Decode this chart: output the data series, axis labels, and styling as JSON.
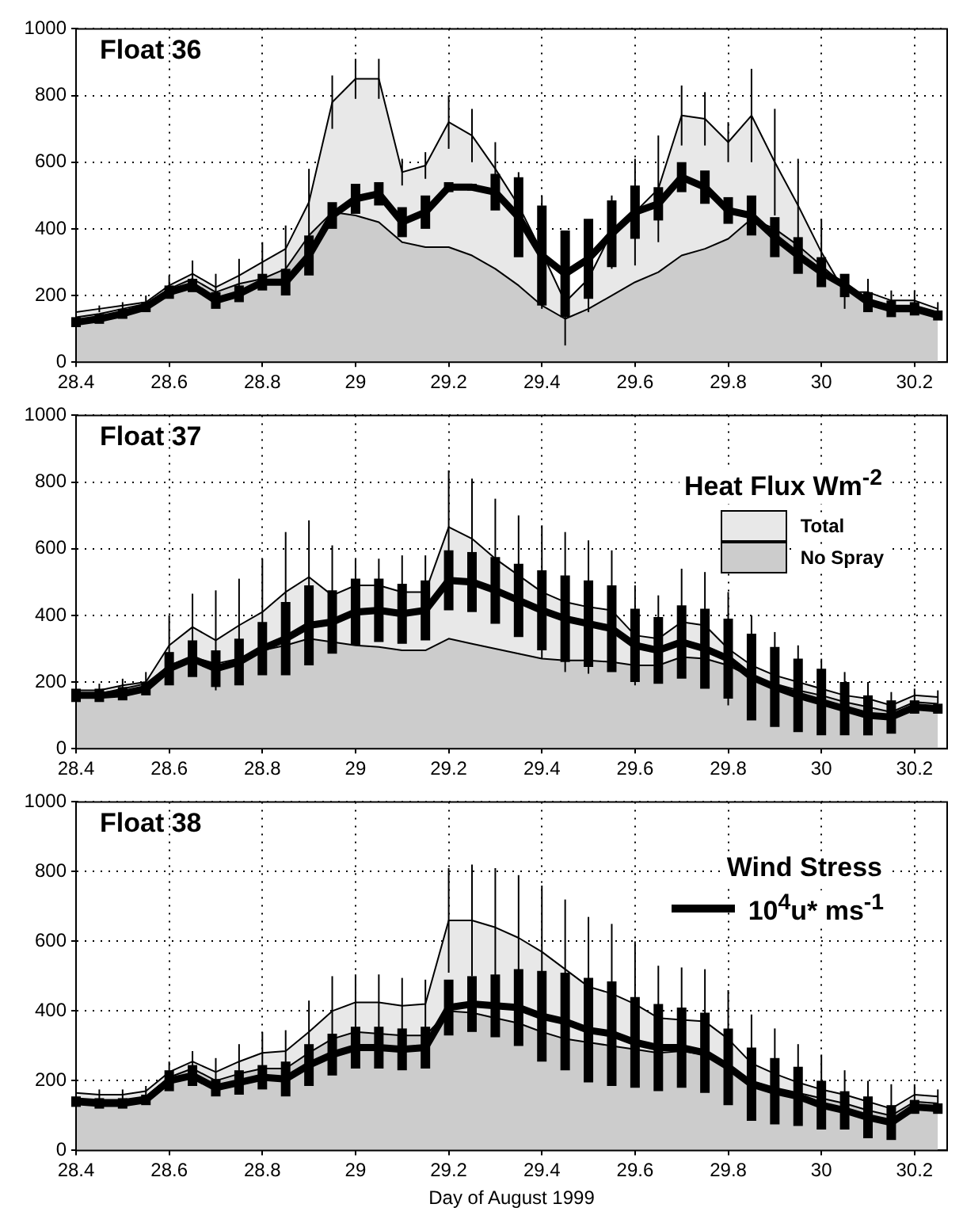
{
  "chart_data": [
    {
      "type": "area",
      "title": "Float 36",
      "x": [
        28.4,
        28.45,
        28.5,
        28.55,
        28.6,
        28.65,
        28.7,
        28.75,
        28.8,
        28.85,
        28.9,
        28.95,
        29.0,
        29.05,
        29.1,
        29.15,
        29.2,
        29.25,
        29.3,
        29.35,
        29.4,
        29.45,
        29.5,
        29.55,
        29.6,
        29.65,
        29.7,
        29.75,
        29.8,
        29.85,
        29.9,
        29.95,
        30.0,
        30.05,
        30.1,
        30.15,
        30.2,
        30.25
      ],
      "xlim": [
        28.4,
        30.27
      ],
      "xticks": [
        28.4,
        28.6,
        28.8,
        29,
        29.2,
        29.4,
        29.6,
        29.8,
        30,
        30.2
      ],
      "ylim": [
        0,
        1000
      ],
      "yticks": [
        0,
        200,
        400,
        600,
        800,
        1000
      ],
      "grid": true,
      "series": [
        {
          "type": "area",
          "color": "#e8e8e8",
          "values": [
            150,
            160,
            170,
            180,
            230,
            265,
            225,
            260,
            300,
            340,
            480,
            780,
            850,
            850,
            570,
            590,
            720,
            680,
            580,
            470,
            330,
            180,
            250,
            390,
            450,
            520,
            740,
            730,
            660,
            740,
            600,
            470,
            330,
            210,
            210,
            185,
            185,
            160
          ],
          "errors": [
            10,
            10,
            10,
            20,
            30,
            40,
            40,
            50,
            60,
            70,
            100,
            80,
            60,
            60,
            40,
            40,
            80,
            80,
            80,
            100,
            170,
            130,
            100,
            110,
            160,
            160,
            90,
            80,
            60,
            140,
            160,
            140,
            100,
            50,
            40,
            30,
            30,
            20
          ]
        },
        {
          "type": "area",
          "color": "#cccccc",
          "values": [
            135,
            145,
            160,
            175,
            220,
            250,
            210,
            235,
            250,
            280,
            380,
            450,
            440,
            420,
            360,
            345,
            345,
            320,
            280,
            230,
            170,
            130,
            160,
            200,
            240,
            270,
            320,
            340,
            370,
            430,
            400,
            350,
            290,
            230,
            190,
            170,
            170,
            150
          ]
        },
        {
          "type": "line",
          "color": "#000000",
          "values": [
            120,
            130,
            145,
            165,
            210,
            230,
            185,
            205,
            240,
            240,
            320,
            440,
            490,
            505,
            420,
            450,
            525,
            525,
            510,
            435,
            320,
            265,
            310,
            385,
            450,
            475,
            555,
            525,
            455,
            440,
            375,
            320,
            270,
            230,
            180,
            160,
            160,
            140
          ],
          "errors": [
            15,
            15,
            15,
            15,
            20,
            20,
            25,
            25,
            25,
            40,
            60,
            40,
            45,
            35,
            45,
            50,
            15,
            10,
            55,
            120,
            150,
            130,
            120,
            100,
            80,
            50,
            45,
            50,
            40,
            60,
            60,
            55,
            45,
            35,
            30,
            25,
            20,
            15
          ]
        }
      ]
    },
    {
      "type": "area",
      "title": "Float 37",
      "x": [
        28.4,
        28.45,
        28.5,
        28.55,
        28.6,
        28.65,
        28.7,
        28.75,
        28.8,
        28.85,
        28.9,
        28.95,
        29.0,
        29.05,
        29.1,
        29.15,
        29.2,
        29.25,
        29.3,
        29.35,
        29.4,
        29.45,
        29.5,
        29.55,
        29.6,
        29.65,
        29.7,
        29.75,
        29.8,
        29.85,
        29.9,
        29.95,
        30.0,
        30.05,
        30.1,
        30.15,
        30.2,
        30.25
      ],
      "xlim": [
        28.4,
        30.27
      ],
      "xticks": [
        28.4,
        28.6,
        28.8,
        29,
        29.2,
        29.4,
        29.6,
        29.8,
        30,
        30.2
      ],
      "ylim": [
        0,
        1000
      ],
      "yticks": [
        0,
        200,
        400,
        600,
        800,
        1000
      ],
      "grid": true,
      "legend": "top right",
      "legend_title": "Heat Flux Wm$^{-2}$",
      "series": [
        {
          "type": "area",
          "name": "Total",
          "color": "#e8e8e8",
          "values": [
            175,
            175,
            190,
            200,
            310,
            365,
            325,
            370,
            410,
            470,
            515,
            460,
            490,
            490,
            470,
            470,
            665,
            630,
            570,
            520,
            470,
            440,
            425,
            415,
            340,
            330,
            380,
            370,
            300,
            250,
            220,
            200,
            180,
            160,
            150,
            130,
            160,
            155
          ],
          "errors": [
            20,
            20,
            20,
            30,
            90,
            100,
            150,
            140,
            160,
            180,
            170,
            150,
            80,
            80,
            110,
            110,
            170,
            180,
            180,
            180,
            200,
            210,
            200,
            180,
            150,
            130,
            160,
            160,
            170,
            150,
            130,
            110,
            90,
            70,
            50,
            40,
            20,
            20
          ]
        },
        {
          "type": "area",
          "name": "No Spray",
          "color": "#cccccc",
          "values": [
            165,
            165,
            180,
            195,
            250,
            275,
            255,
            270,
            295,
            310,
            330,
            320,
            310,
            305,
            295,
            295,
            330,
            315,
            300,
            285,
            270,
            265,
            265,
            260,
            250,
            250,
            275,
            270,
            250,
            215,
            195,
            175,
            160,
            140,
            125,
            110,
            140,
            135
          ]
        },
        {
          "type": "line",
          "color": "#000000",
          "values": [
            160,
            160,
            165,
            180,
            240,
            270,
            240,
            260,
            300,
            330,
            370,
            380,
            410,
            415,
            405,
            415,
            505,
            500,
            475,
            445,
            415,
            390,
            375,
            360,
            310,
            295,
            320,
            300,
            270,
            215,
            185,
            160,
            140,
            120,
            100,
            95,
            125,
            120
          ],
          "errors": [
            20,
            20,
            20,
            20,
            50,
            55,
            55,
            70,
            80,
            110,
            120,
            95,
            100,
            95,
            90,
            90,
            90,
            90,
            100,
            110,
            120,
            130,
            130,
            130,
            110,
            100,
            110,
            120,
            120,
            130,
            120,
            110,
            100,
            80,
            60,
            50,
            20,
            15
          ]
        }
      ]
    },
    {
      "type": "area",
      "title": "Float 38",
      "xlabel": "Day of August 1999",
      "x": [
        28.4,
        28.45,
        28.5,
        28.55,
        28.6,
        28.65,
        28.7,
        28.75,
        28.8,
        28.85,
        28.9,
        28.95,
        29.0,
        29.05,
        29.1,
        29.15,
        29.2,
        29.25,
        29.3,
        29.35,
        29.4,
        29.45,
        29.5,
        29.55,
        29.6,
        29.65,
        29.7,
        29.75,
        29.8,
        29.85,
        29.9,
        29.95,
        30.0,
        30.05,
        30.1,
        30.15,
        30.2,
        30.25
      ],
      "xlim": [
        28.4,
        30.27
      ],
      "xticks": [
        28.4,
        28.6,
        28.8,
        29,
        29.2,
        29.4,
        29.6,
        29.8,
        30,
        30.2
      ],
      "ylim": [
        0,
        1000
      ],
      "yticks": [
        0,
        200,
        400,
        600,
        800,
        1000
      ],
      "grid": true,
      "legend": "top right",
      "legend_title": "Wind Stress",
      "series": [
        {
          "type": "area",
          "color": "#e8e8e8",
          "values": [
            165,
            160,
            160,
            170,
            225,
            255,
            225,
            255,
            280,
            285,
            340,
            400,
            425,
            425,
            415,
            420,
            660,
            660,
            640,
            610,
            570,
            520,
            470,
            450,
            420,
            380,
            375,
            370,
            320,
            250,
            220,
            195,
            175,
            160,
            140,
            120,
            160,
            155
          ],
          "errors": [
            15,
            15,
            15,
            15,
            30,
            30,
            40,
            50,
            60,
            60,
            90,
            100,
            80,
            80,
            80,
            70,
            150,
            160,
            170,
            180,
            190,
            200,
            200,
            200,
            180,
            150,
            150,
            150,
            140,
            140,
            130,
            110,
            100,
            70,
            60,
            70,
            30,
            20
          ]
        },
        {
          "type": "area",
          "color": "#cccccc",
          "values": [
            150,
            145,
            145,
            155,
            210,
            235,
            200,
            220,
            235,
            235,
            280,
            320,
            340,
            335,
            330,
            330,
            400,
            395,
            380,
            365,
            340,
            320,
            310,
            300,
            290,
            280,
            285,
            275,
            240,
            200,
            180,
            165,
            150,
            135,
            115,
            100,
            140,
            135
          ]
        },
        {
          "type": "line",
          "name": "10$^{4}$u* ms$^{-1}$",
          "color": "#000000",
          "values": [
            140,
            135,
            135,
            145,
            200,
            215,
            180,
            195,
            210,
            205,
            245,
            275,
            295,
            295,
            290,
            295,
            410,
            420,
            415,
            410,
            385,
            370,
            345,
            335,
            310,
            295,
            295,
            280,
            240,
            190,
            170,
            155,
            130,
            115,
            95,
            80,
            125,
            120
          ],
          "errors": [
            15,
            15,
            15,
            15,
            30,
            30,
            25,
            35,
            35,
            50,
            60,
            60,
            60,
            60,
            60,
            60,
            80,
            80,
            90,
            110,
            130,
            140,
            150,
            150,
            130,
            125,
            115,
            115,
            110,
            105,
            95,
            85,
            70,
            55,
            60,
            50,
            20,
            15
          ]
        }
      ]
    }
  ]
}
